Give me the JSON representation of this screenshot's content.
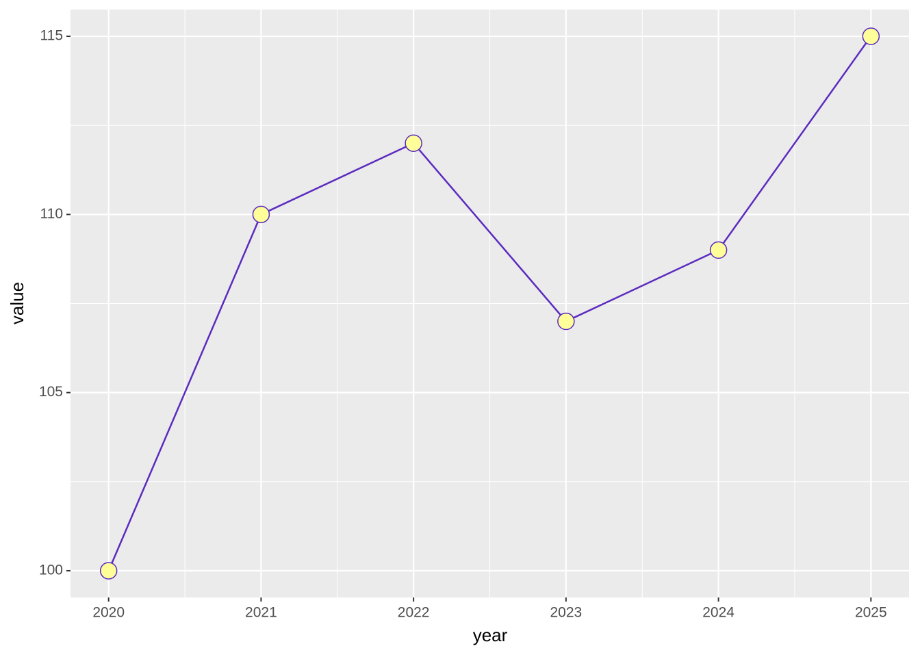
{
  "chart_data": {
    "type": "line",
    "x_label": "year",
    "y_label": "value",
    "x": [
      2020,
      2021,
      2022,
      2023,
      2024,
      2025
    ],
    "values": [
      100,
      110,
      112,
      107,
      109,
      115
    ],
    "color": "#5b2bbf",
    "marker_fill": "#ffff99",
    "xlim": [
      2019.75,
      2025.25
    ],
    "xticks": [
      2020,
      2021,
      2022,
      2023,
      2024,
      2025
    ],
    "x_minor_ticks": [
      2020.5,
      2021.5,
      2022.5,
      2023.5,
      2024.5
    ],
    "ylim": [
      99.25,
      115.75
    ],
    "yticks": [
      100,
      105,
      110,
      115
    ],
    "y_minor_ticks": [
      102.5,
      107.5,
      112.5
    ],
    "grid": true
  }
}
